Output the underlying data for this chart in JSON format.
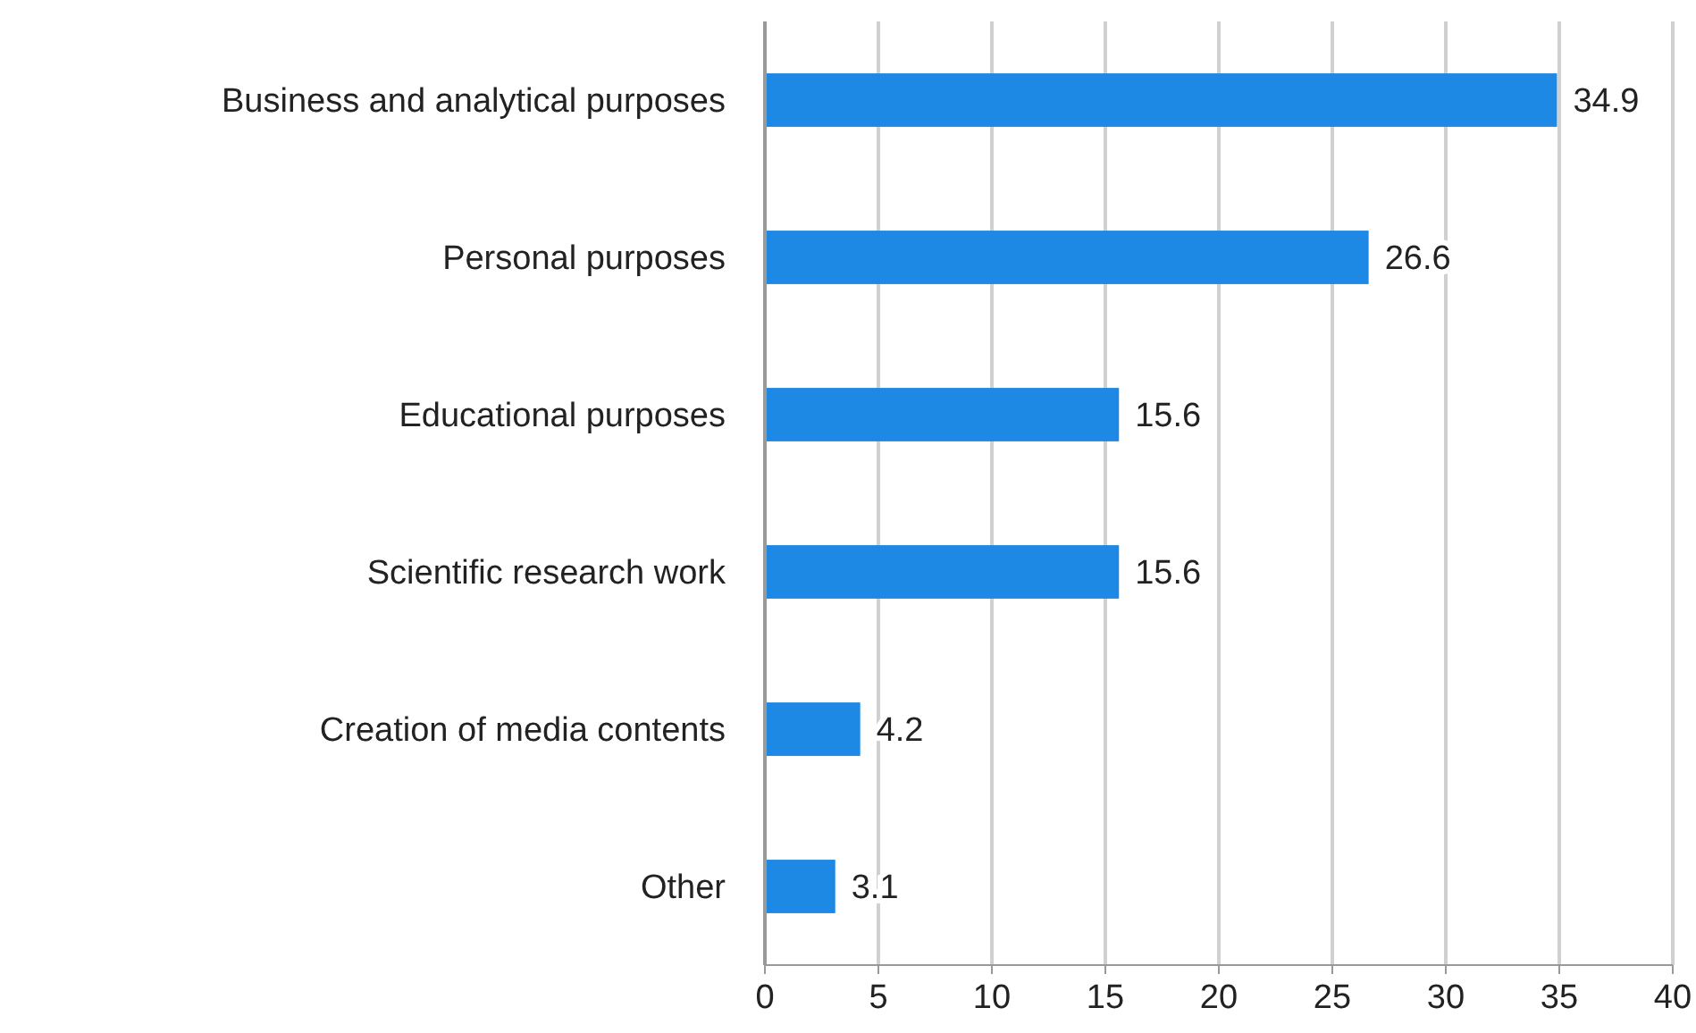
{
  "chart_data": {
    "type": "bar",
    "orientation": "horizontal",
    "categories": [
      "Business and analytical purposes",
      "Personal purposes",
      "Educational purposes",
      "Scientific research work",
      "Creation of media contents",
      "Other"
    ],
    "values": [
      34.9,
      26.6,
      15.6,
      15.6,
      4.2,
      3.1
    ],
    "color": "#1e88e5",
    "xlim": [
      0,
      40
    ],
    "xticks": [
      0,
      5,
      10,
      15,
      20,
      25,
      30,
      35,
      40
    ],
    "grid": "x",
    "data_labels": true
  }
}
